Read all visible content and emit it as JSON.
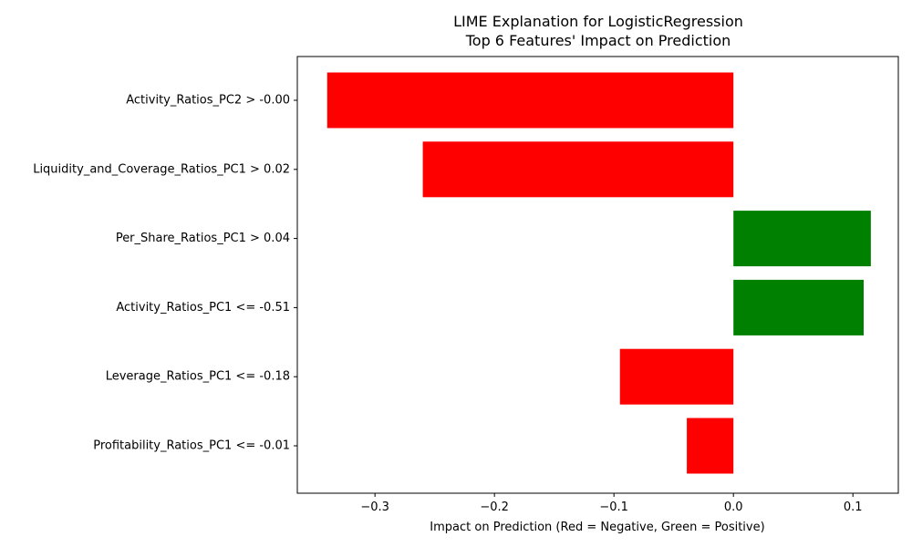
{
  "chart_data": {
    "type": "bar",
    "orientation": "horizontal",
    "title": "LIME Explanation for LogisticRegression",
    "subtitle": "Top 6 Features' Impact on Prediction",
    "xlabel": "Impact on Prediction (Red = Negative, Green = Positive)",
    "ylabel": "",
    "xlim": [
      -0.365,
      0.138
    ],
    "grid": false,
    "legend": "none",
    "xticks": [
      -0.3,
      -0.2,
      -0.1,
      0.0,
      0.1
    ],
    "xtick_labels": [
      "−0.3",
      "−0.2",
      "−0.1",
      "0.0",
      "0.1"
    ],
    "categories": [
      "Activity_Ratios_PC2 > -0.00",
      "Liquidity_and_Coverage_Ratios_PC1 > 0.02",
      "Per_Share_Ratios_PC1 > 0.04",
      "Activity_Ratios_PC1 <= -0.51",
      "Leverage_Ratios_PC1 <= -0.18",
      "Profitability_Ratios_PC1 <= -0.01"
    ],
    "values": [
      -0.34,
      -0.26,
      0.115,
      0.109,
      -0.095,
      -0.039
    ],
    "colors": {
      "negative": "#ff0000",
      "positive": "#008000",
      "axis": "#000000"
    }
  }
}
